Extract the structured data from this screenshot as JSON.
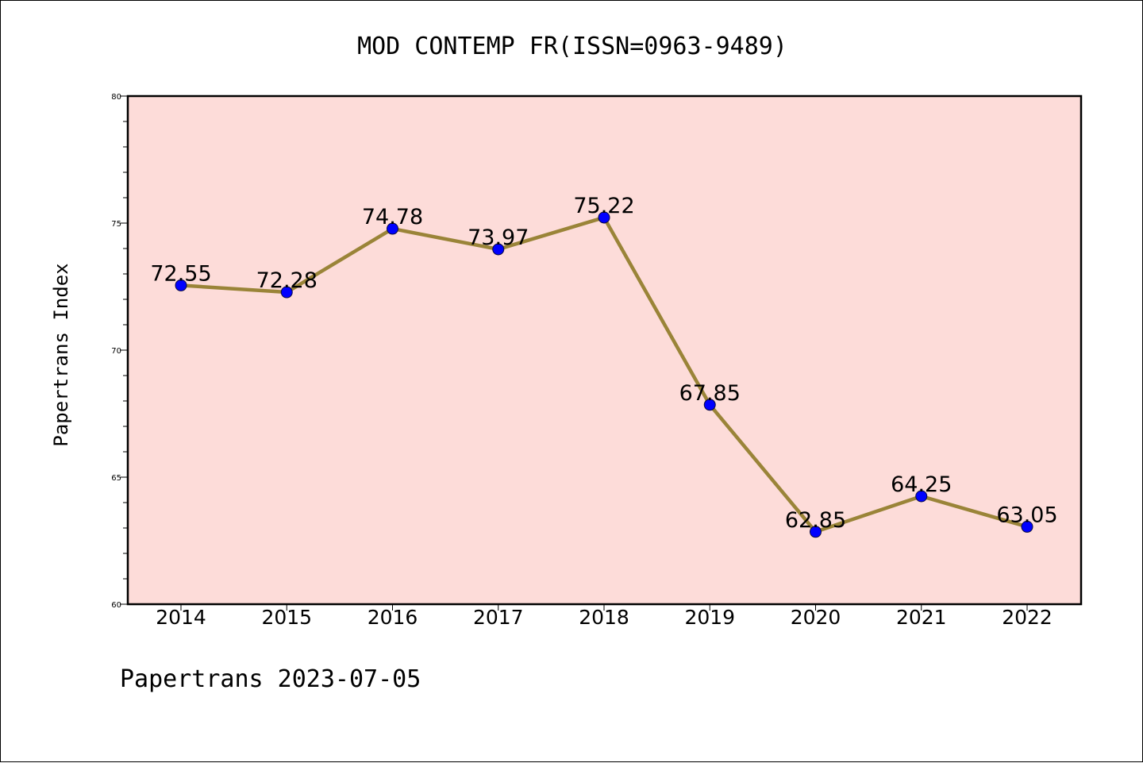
{
  "chart_data": {
    "type": "line",
    "title": "MOD CONTEMP FR(ISSN=0963-9489)",
    "xlabel": "",
    "ylabel": "Papertrans Index",
    "categories": [
      "2014",
      "2015",
      "2016",
      "2017",
      "2018",
      "2019",
      "2020",
      "2021",
      "2022"
    ],
    "values": [
      72.55,
      72.28,
      74.78,
      73.97,
      75.22,
      67.85,
      62.85,
      64.25,
      63.05
    ],
    "data_labels": [
      "72.55",
      "72.28",
      "74.78",
      "73.97",
      "75.22",
      "67.85",
      "62.85",
      "64.25",
      "63.05"
    ],
    "ylim": [
      60,
      80
    ],
    "yticks": [
      60,
      65,
      70,
      75,
      80
    ],
    "ytick_labels": [
      "60",
      "65",
      "70",
      "75",
      "80"
    ],
    "grid": false,
    "legend": "none",
    "colors": {
      "plot_background": "#fddcd9",
      "line": "#9a8438",
      "marker": "#0000ff"
    }
  },
  "footer": "Papertrans 2023-07-05"
}
